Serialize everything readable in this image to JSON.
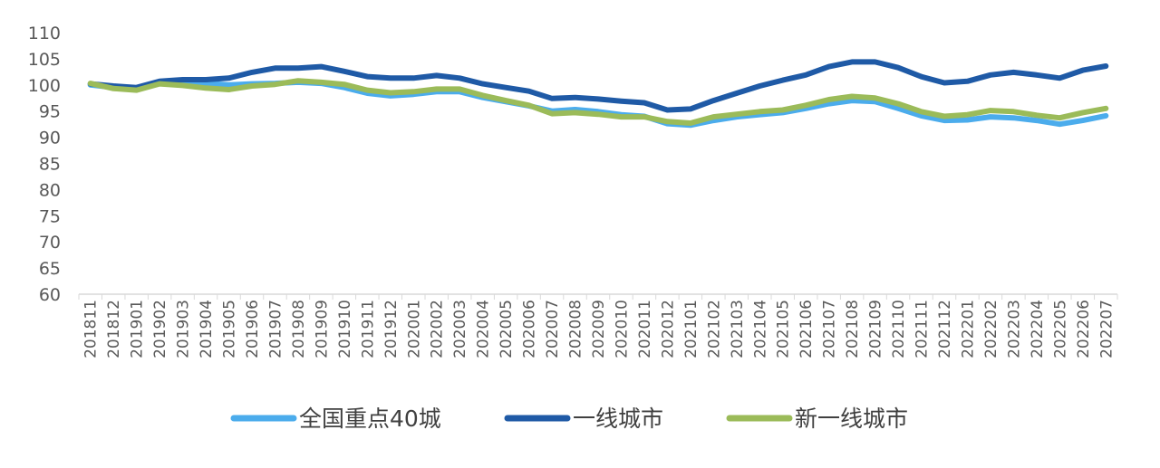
{
  "chart_data": {
    "type": "line",
    "title": "",
    "xlabel": "",
    "ylabel": "",
    "ylim": [
      60,
      110
    ],
    "yticks": [
      60,
      65,
      70,
      75,
      80,
      85,
      90,
      95,
      100,
      105,
      110
    ],
    "grid": false,
    "legend_position": "bottom",
    "categories": [
      "201811",
      "201812",
      "201901",
      "201902",
      "201903",
      "201904",
      "201905",
      "201906",
      "201907",
      "201908",
      "201909",
      "201910",
      "201911",
      "201912",
      "202001",
      "202002",
      "202003",
      "202004",
      "202005",
      "202006",
      "202007",
      "202008",
      "202009",
      "202010",
      "202011",
      "202012",
      "202101",
      "202102",
      "202103",
      "202104",
      "202105",
      "202106",
      "202107",
      "202108",
      "202109",
      "202110",
      "202111",
      "202112",
      "202201",
      "202202",
      "202203",
      "202204",
      "202205",
      "202206",
      "202207"
    ],
    "series": [
      {
        "name": "全国重点40城",
        "color": "#4BACEC",
        "values": [
          100.0,
          99.5,
          99.3,
          100.5,
          100.5,
          100.3,
          100.0,
          100.2,
          100.3,
          100.5,
          100.3,
          99.5,
          98.4,
          97.9,
          98.2,
          98.7,
          98.7,
          97.6,
          96.8,
          96.0,
          95.0,
          95.3,
          94.9,
          94.3,
          94.0,
          92.6,
          92.3,
          93.2,
          93.9,
          94.3,
          94.7,
          95.5,
          96.4,
          97.0,
          96.8,
          95.5,
          94.1,
          93.2,
          93.3,
          93.9,
          93.7,
          93.2,
          92.5,
          93.2,
          94.1
        ]
      },
      {
        "name": "一线城市",
        "color": "#1F5AA6",
        "values": [
          100.2,
          99.8,
          99.5,
          100.7,
          101.0,
          101.0,
          101.3,
          102.4,
          103.2,
          103.2,
          103.5,
          102.6,
          101.6,
          101.3,
          101.3,
          101.8,
          101.3,
          100.2,
          99.5,
          98.8,
          97.4,
          97.6,
          97.3,
          96.9,
          96.6,
          95.2,
          95.4,
          97.0,
          98.4,
          99.8,
          100.9,
          101.9,
          103.5,
          104.4,
          104.4,
          103.3,
          101.6,
          100.4,
          100.7,
          101.9,
          102.4,
          101.9,
          101.3,
          102.8,
          103.6
        ]
      },
      {
        "name": "新一线城市",
        "color": "#9BBB59",
        "values": [
          100.3,
          99.3,
          99.0,
          100.2,
          99.9,
          99.4,
          99.1,
          99.8,
          100.1,
          100.8,
          100.5,
          100.1,
          99.0,
          98.5,
          98.7,
          99.2,
          99.2,
          98.0,
          97.0,
          96.1,
          94.5,
          94.7,
          94.4,
          93.9,
          93.9,
          93.0,
          92.7,
          93.9,
          94.4,
          94.9,
          95.2,
          96.1,
          97.2,
          97.8,
          97.5,
          96.4,
          94.9,
          94.0,
          94.3,
          95.1,
          94.9,
          94.2,
          93.7,
          94.7,
          95.5
        ]
      }
    ]
  }
}
